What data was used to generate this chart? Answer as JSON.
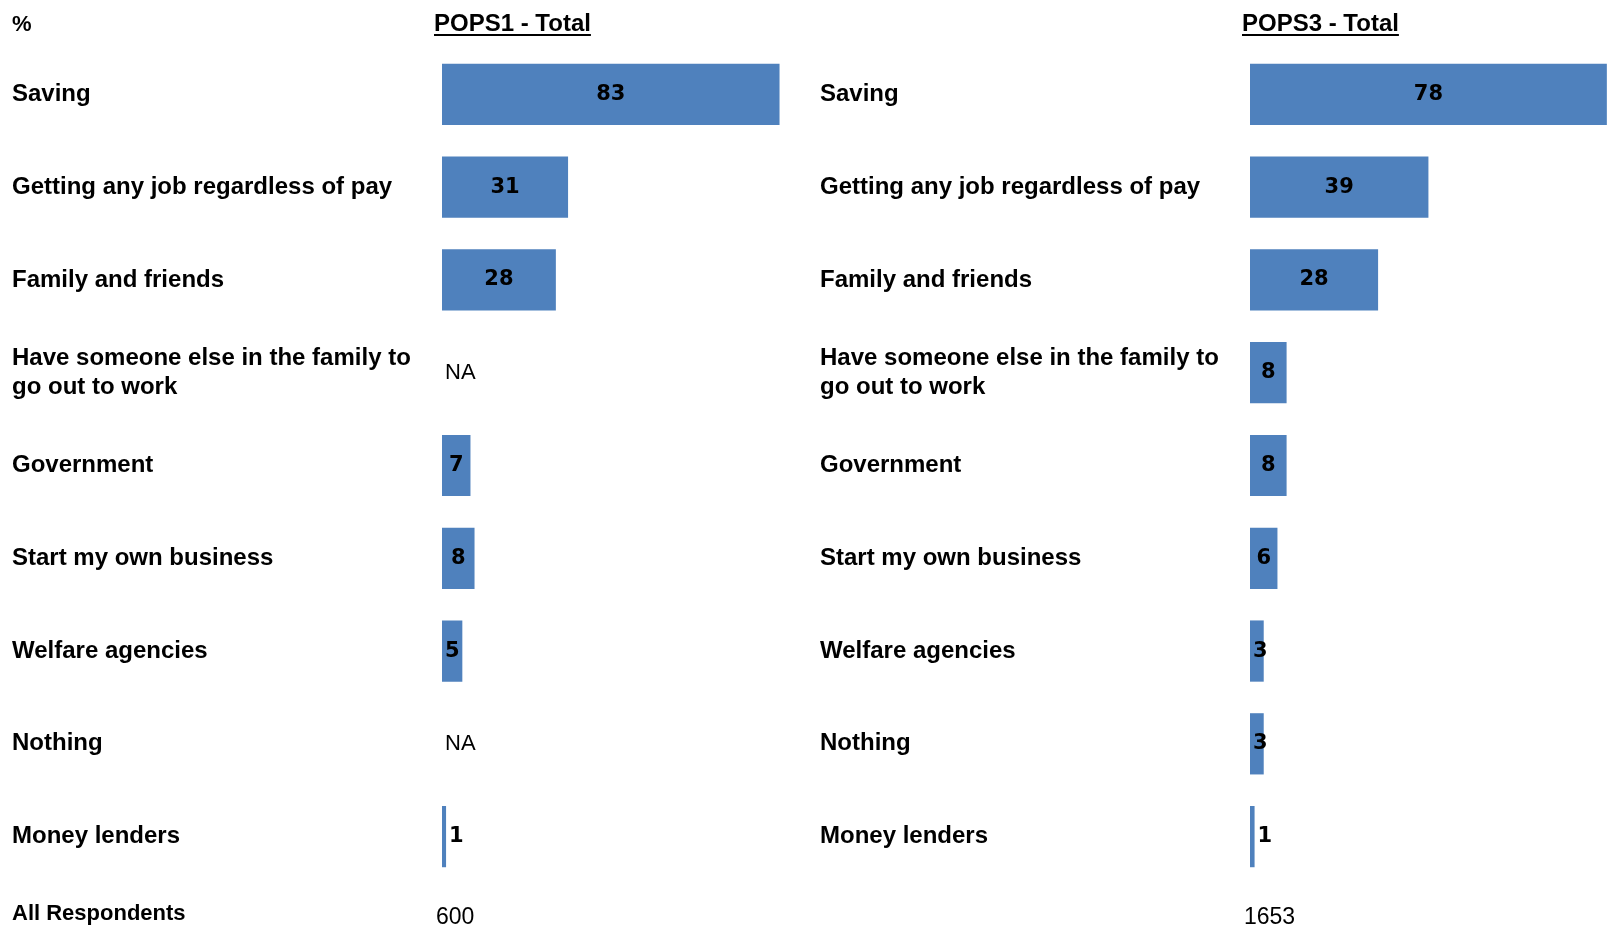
{
  "chart_data": [
    {
      "type": "bar",
      "orientation": "horizontal",
      "title": "POPS1 - Total",
      "ylabel": "%",
      "categories": [
        "Saving",
        "Getting any job regardless of pay",
        "Family and friends",
        "Have someone else in the family to go out to work",
        "Government",
        "Start my own business",
        "Welfare agencies",
        "Nothing",
        "Money lenders"
      ],
      "values": [
        83,
        31,
        28,
        null,
        7,
        8,
        5,
        null,
        1
      ],
      "value_labels": [
        "83",
        "31",
        "28",
        "NA",
        "7",
        "8",
        "5",
        "NA",
        "1"
      ],
      "color": "#4f81bd",
      "tick_labels": "y",
      "annotations": [
        "All Respondents",
        "600"
      ]
    },
    {
      "type": "bar",
      "orientation": "horizontal",
      "title": "POPS3 - Total",
      "categories": [
        "Saving",
        "Getting any job regardless of pay",
        "Family and friends",
        "Have someone else in the family to go out to work",
        "Government",
        "Start my own business",
        "Welfare agencies",
        "Nothing",
        "Money lenders"
      ],
      "values": [
        78,
        39,
        28,
        8,
        8,
        6,
        3,
        3,
        1
      ],
      "value_labels": [
        "78",
        "39",
        "28",
        "8",
        "8",
        "6",
        "3",
        "3",
        "1"
      ],
      "color": "#4f81bd",
      "tick_labels": "y",
      "annotations": [
        "1653"
      ]
    }
  ]
}
